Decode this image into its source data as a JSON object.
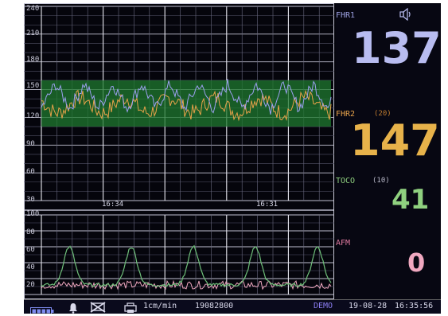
{
  "fhr_axis": {
    "ticks": [
      "240",
      "210",
      "180",
      "150",
      "120",
      "90",
      "60",
      "30"
    ],
    "min": 30,
    "max": 240,
    "normal_band": [
      110,
      160
    ]
  },
  "toco_axis": {
    "ticks": [
      "100",
      "80",
      "60",
      "40",
      "20"
    ],
    "min": 0,
    "max": 100
  },
  "time_labels": [
    "16:34",
    "16:31"
  ],
  "fhr1": {
    "label": "FHR1",
    "value": "137",
    "color": "#b8bcf0",
    "icon": "speaker-icon"
  },
  "fhr2": {
    "label": "FHR2",
    "offset": "(20)",
    "value": "147",
    "color": "#e7b24a"
  },
  "toco": {
    "label": "TOCO",
    "offset": "(10)",
    "value": "41",
    "color": "#8fd07f"
  },
  "afm": {
    "label": "AFM",
    "value": "0",
    "color": "#f0a8c0"
  },
  "status": {
    "battery_icon": "battery-icon",
    "alarm_icon": "bell-icon",
    "alarm_off_icon": "alarm-muted-icon",
    "printer_icon": "printer-icon",
    "speed": "1cm/min",
    "id": "19082800",
    "mode": "DEMO",
    "date": "19-08-28",
    "time": "16:35:56"
  },
  "colors": {
    "fhr1": "#9ca0f0",
    "fhr2": "#e7a24a",
    "toco": "#6fc07a",
    "afm": "#f0a8c0",
    "band": "#1f7a2f",
    "grid": "#8e8e9e",
    "bg": "#05050c"
  }
}
